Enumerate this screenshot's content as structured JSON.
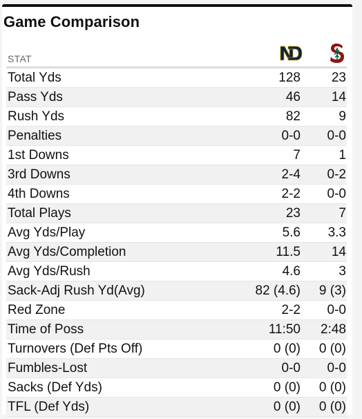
{
  "title": "Game Comparison",
  "header": {
    "stat_label": "STAT",
    "team1_logo_icon": "notre-dame-nd-logo",
    "team2_logo_icon": "stanford-s-tree-logo",
    "team1_color": "#0c2340",
    "team2_color": "#8c1515"
  },
  "rows": [
    {
      "label": "Total Yds",
      "team1": "128",
      "team2": "23"
    },
    {
      "label": "Pass Yds",
      "team1": "46",
      "team2": "14"
    },
    {
      "label": "Rush Yds",
      "team1": "82",
      "team2": "9"
    },
    {
      "label": "Penalties",
      "team1": "0-0",
      "team2": "0-0"
    },
    {
      "label": "1st Downs",
      "team1": "7",
      "team2": "1"
    },
    {
      "label": "3rd Downs",
      "team1": "2-4",
      "team2": "0-2"
    },
    {
      "label": "4th Downs",
      "team1": "2-2",
      "team2": "0-0"
    },
    {
      "label": "Total Plays",
      "team1": "23",
      "team2": "7"
    },
    {
      "label": "Avg Yds/Play",
      "team1": "5.6",
      "team2": "3.3"
    },
    {
      "label": "Avg Yds/Completion",
      "team1": "11.5",
      "team2": "14"
    },
    {
      "label": "Avg Yds/Rush",
      "team1": "4.6",
      "team2": "3"
    },
    {
      "label": "Sack-Adj Rush Yd(Avg)",
      "team1": "82 (4.6)",
      "team2": "9 (3)"
    },
    {
      "label": "Red Zone",
      "team1": "2-2",
      "team2": "0-0"
    },
    {
      "label": "Time of Poss",
      "team1": "11:50",
      "team2": "2:48"
    },
    {
      "label": "Turnovers (Def Pts Off)",
      "team1": "0 (0)",
      "team2": "0 (0)"
    },
    {
      "label": "Fumbles-Lost",
      "team1": "0-0",
      "team2": "0-0"
    },
    {
      "label": "Sacks (Def Yds)",
      "team1": "0 (0)",
      "team2": "0 (0)"
    },
    {
      "label": "TFL (Def Yds)",
      "team1": "0 (0)",
      "team2": "0 (0)"
    }
  ]
}
